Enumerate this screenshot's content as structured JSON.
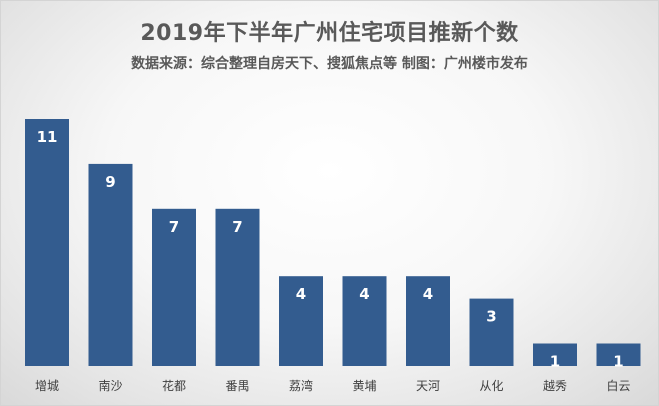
{
  "chart_data": {
    "type": "bar",
    "title": "2019年下半年广州住宅项目推新个数",
    "subtitle": "数据来源：综合整理自房天下、搜狐焦点等  制图：广州楼市发布",
    "categories": [
      "增城",
      "南沙",
      "花都",
      "番禺",
      "荔湾",
      "黄埔",
      "天河",
      "从化",
      "越秀",
      "白云"
    ],
    "values": [
      11,
      9,
      7,
      7,
      4,
      4,
      4,
      3,
      1,
      1
    ],
    "xlabel": "",
    "ylabel": "",
    "ylim": [
      0,
      11
    ],
    "grid": false,
    "legend": "none",
    "bar_color": "#335c8f",
    "label_color": "#ffffff"
  }
}
